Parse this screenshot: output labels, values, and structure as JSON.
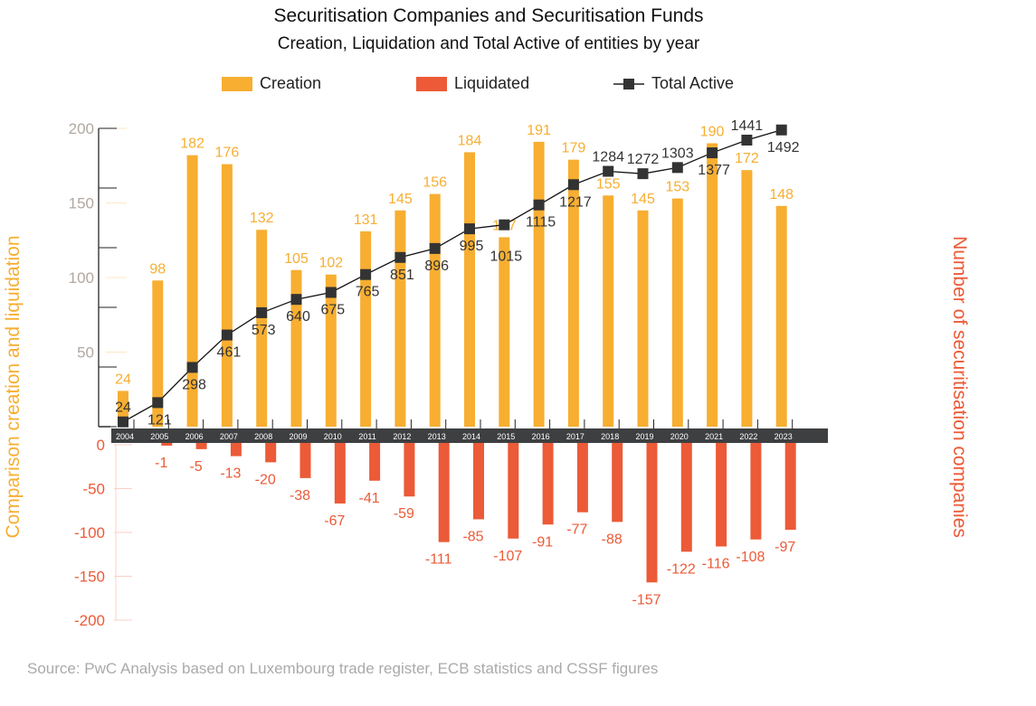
{
  "chart_data": {
    "type": "bar",
    "title": "Securitisation Companies and Securitisation Funds",
    "subtitle": "Creation, Liquidation and Total Active of entities by year",
    "ylabel_left": "Comparison creation and liquidation",
    "ylabel_right": "Number of securitisation companies",
    "source": "Source: PwC Analysis based on Luxembourg trade register, ECB statistics and CSSF figures",
    "legend_position": "top",
    "categories": [
      "2004",
      "2005",
      "2006",
      "2007",
      "2008",
      "2009",
      "2010",
      "2011",
      "2012",
      "2013",
      "2014",
      "2015",
      "2016",
      "2017",
      "2018",
      "2019",
      "2020",
      "2021",
      "2022",
      "2023"
    ],
    "series": [
      {
        "name": "Creation",
        "type": "bar",
        "color": "#f7ae31",
        "values": [
          24,
          98,
          182,
          176,
          132,
          105,
          102,
          131,
          145,
          156,
          184,
          127,
          191,
          179,
          155,
          145,
          153,
          190,
          172,
          148
        ]
      },
      {
        "name": "Liquidated",
        "type": "bar",
        "color": "#ec5a37",
        "values": [
          null,
          -1,
          -5,
          -13,
          -20,
          -38,
          -67,
          -41,
          -59,
          -111,
          -85,
          -107,
          -91,
          -77,
          -88,
          -157,
          -122,
          -116,
          -108,
          -97
        ]
      },
      {
        "name": "Total Active",
        "type": "line",
        "color": "#333333",
        "values": [
          24,
          121,
          298,
          461,
          573,
          640,
          675,
          765,
          851,
          896,
          995,
          1015,
          1115,
          1217,
          1284,
          1272,
          1303,
          1377,
          1441,
          1492
        ]
      }
    ],
    "yticks_positive": [
      "50",
      "100",
      "150",
      "200"
    ],
    "yticks_negative": [
      "0",
      "-50",
      "-100",
      "-150",
      "-200"
    ],
    "ylim_left": [
      -200,
      200
    ],
    "ylim_right": [
      0,
      1500
    ]
  }
}
